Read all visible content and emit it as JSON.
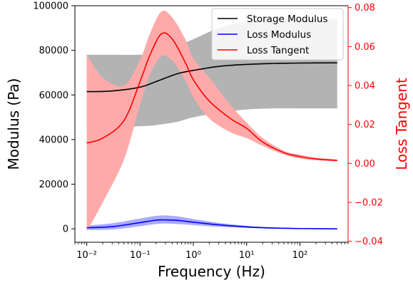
{
  "chart_data": {
    "type": "line",
    "xlabel": "Frequency (Hz)",
    "ylabel": "Modulus (Pa)",
    "y2label": "Loss Tangent",
    "x_scale": "log",
    "xlim": [
      0.006,
      800
    ],
    "ylim": [
      -6000,
      100000
    ],
    "y2lim": [
      -0.0405,
      0.081
    ],
    "x_ticks": [
      {
        "value": 0.01,
        "label": "10⁻²"
      },
      {
        "value": 0.1,
        "label": "10⁻¹"
      },
      {
        "value": 1,
        "label": "10⁰"
      },
      {
        "value": 10,
        "label": "10¹"
      },
      {
        "value": 100,
        "label": "10²"
      }
    ],
    "y_ticks": [
      {
        "value": 0,
        "label": "0"
      },
      {
        "value": 20000,
        "label": "20000"
      },
      {
        "value": 40000,
        "label": "40000"
      },
      {
        "value": 60000,
        "label": "60000"
      },
      {
        "value": 80000,
        "label": "80000"
      },
      {
        "value": 100000,
        "label": "100000"
      }
    ],
    "y2_ticks": [
      {
        "value": -0.04,
        "label": "−0.04"
      },
      {
        "value": -0.02,
        "label": "−0.02"
      },
      {
        "value": 0.0,
        "label": "0.00"
      },
      {
        "value": 0.02,
        "label": "0.02"
      },
      {
        "value": 0.04,
        "label": "0.04"
      },
      {
        "value": 0.06,
        "label": "0.06"
      },
      {
        "value": 0.08,
        "label": "0.08"
      }
    ],
    "grid": false,
    "legend_position": "top-right",
    "series": [
      {
        "name": "Storage Modulus",
        "axis": "left",
        "color": "#000000",
        "band_color": "#b3b3b3",
        "x": [
          0.01,
          0.03,
          0.1,
          0.2,
          0.5,
          1,
          3,
          10,
          30,
          100,
          500
        ],
        "y": [
          61500,
          61800,
          63500,
          66000,
          69500,
          71000,
          72800,
          73700,
          74100,
          74300,
          74400
        ],
        "upper": [
          78000,
          78000,
          78000,
          78500,
          82000,
          85000,
          90000,
          93000,
          94000,
          94000,
          94000
        ],
        "lower": [
          45000,
          45300,
          46000,
          46500,
          48000,
          50000,
          52000,
          53500,
          54000,
          54000,
          54000
        ]
      },
      {
        "name": "Loss Modulus",
        "axis": "left",
        "color": "#0000ff",
        "band_color": "#aaaaff",
        "x": [
          0.01,
          0.03,
          0.1,
          0.2,
          0.3,
          0.5,
          1,
          3,
          10,
          30,
          100,
          500
        ],
        "y": [
          500,
          1000,
          2800,
          3900,
          4000,
          3800,
          3000,
          1800,
          900,
          400,
          150,
          0
        ],
        "upper": [
          1500,
          2500,
          4600,
          5800,
          6000,
          5600,
          4400,
          2700,
          1400,
          700,
          300,
          100
        ],
        "lower": [
          -500,
          -300,
          1200,
          2200,
          2400,
          2200,
          1700,
          900,
          400,
          100,
          0,
          -100
        ]
      },
      {
        "name": "Loss Tangent",
        "axis": "right",
        "color": "#ff0000",
        "band_color": "#ffaaaa",
        "x": [
          0.01,
          0.02,
          0.05,
          0.1,
          0.15,
          0.25,
          0.4,
          0.7,
          1,
          2,
          5,
          10,
          20,
          50,
          100,
          200,
          500
        ],
        "y": [
          0.0105,
          0.013,
          0.022,
          0.042,
          0.055,
          0.0665,
          0.064,
          0.052,
          0.043,
          0.032,
          0.023,
          0.018,
          0.011,
          0.0055,
          0.0035,
          0.0023,
          0.0015
        ],
        "upper": [
          0.056,
          0.044,
          0.04,
          0.053,
          0.066,
          0.078,
          0.075,
          0.064,
          0.054,
          0.044,
          0.03,
          0.021,
          0.013,
          0.0065,
          0.0045,
          0.003,
          0.002
        ],
        "lower": [
          -0.035,
          -0.02,
          0.002,
          0.03,
          0.045,
          0.055,
          0.053,
          0.043,
          0.034,
          0.023,
          0.016,
          0.013,
          0.009,
          0.0045,
          0.0025,
          0.0016,
          0.001
        ]
      }
    ]
  }
}
